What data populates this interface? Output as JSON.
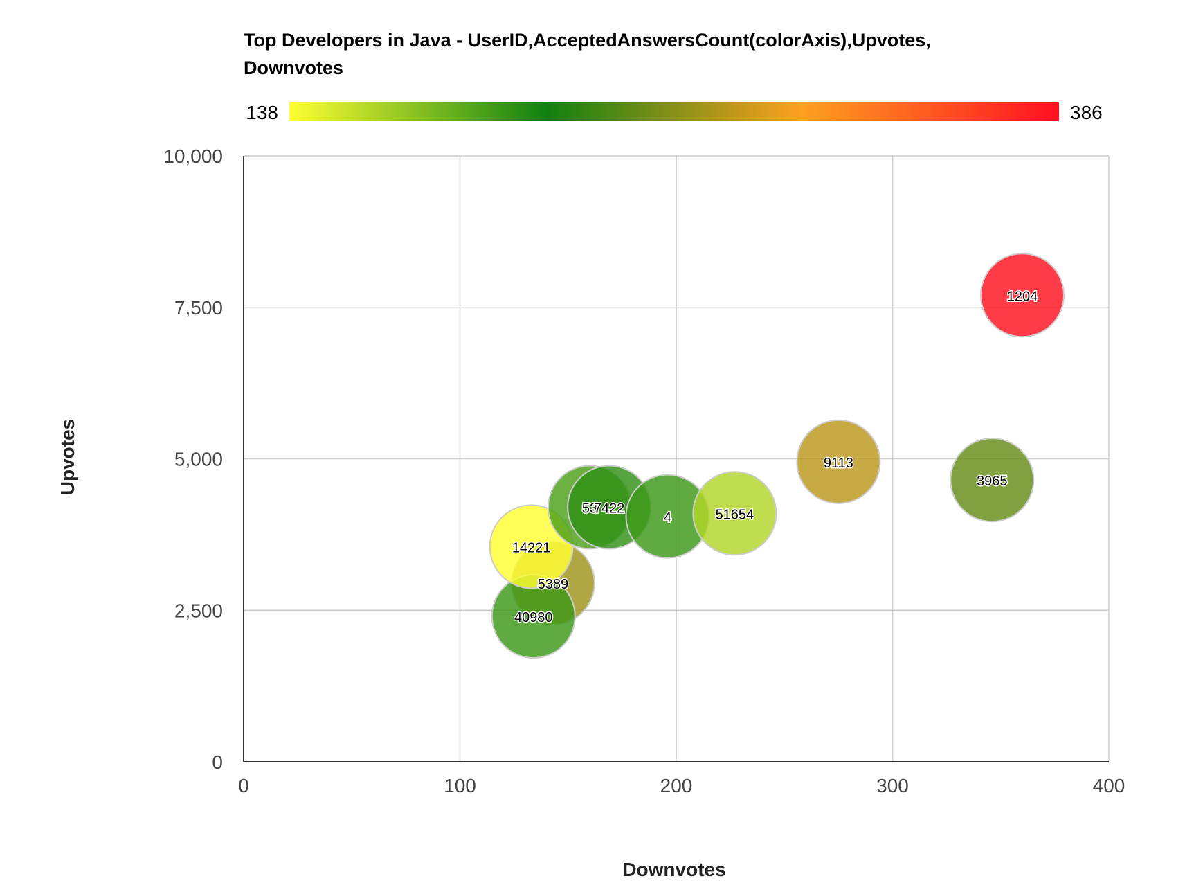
{
  "chart_data": {
    "type": "bubble",
    "title": "Top Developers in Java - UserID,AcceptedAnswersCount(colorAxis),Upvotes,",
    "title_line2": "Downvotes",
    "xlabel": "Downvotes",
    "ylabel": "Upvotes",
    "xlim": [
      0,
      400
    ],
    "ylim": [
      0,
      10000
    ],
    "x_ticks": [
      0,
      100,
      200,
      300,
      400
    ],
    "y_ticks": [
      0,
      2500,
      5000,
      7500,
      10000
    ],
    "x_tick_labels": [
      "0",
      "100",
      "200",
      "300",
      "400"
    ],
    "y_tick_labels": [
      "0",
      "2,500",
      "5,000",
      "7,500",
      "10,000"
    ],
    "grid": true,
    "color_axis": {
      "min": 138,
      "max": 386,
      "min_label": "138",
      "max_label": "386",
      "colors": [
        "#ffff33",
        "#108010",
        "#ffa020",
        "#ff1020"
      ]
    },
    "points": [
      {
        "label": "5389",
        "x": 143,
        "y": 2950,
        "color_value": 270
      },
      {
        "label": "40980",
        "x": 134,
        "y": 2400,
        "color_value": 205
      },
      {
        "label": "14221",
        "x": 133,
        "y": 3550,
        "color_value": 138
      },
      {
        "label": "53",
        "x": 160,
        "y": 4200,
        "color_value": 200
      },
      {
        "label": "7422",
        "x": 169,
        "y": 4200,
        "color_value": 210
      },
      {
        "label": "4",
        "x": 196,
        "y": 4050,
        "color_value": 205
      },
      {
        "label": "51654",
        "x": 227,
        "y": 4100,
        "color_value": 165
      },
      {
        "label": "9113",
        "x": 275,
        "y": 4950,
        "color_value": 280
      },
      {
        "label": "3965",
        "x": 346,
        "y": 4650,
        "color_value": 250
      },
      {
        "label": "1204",
        "x": 360,
        "y": 7700,
        "color_value": 386
      }
    ]
  }
}
